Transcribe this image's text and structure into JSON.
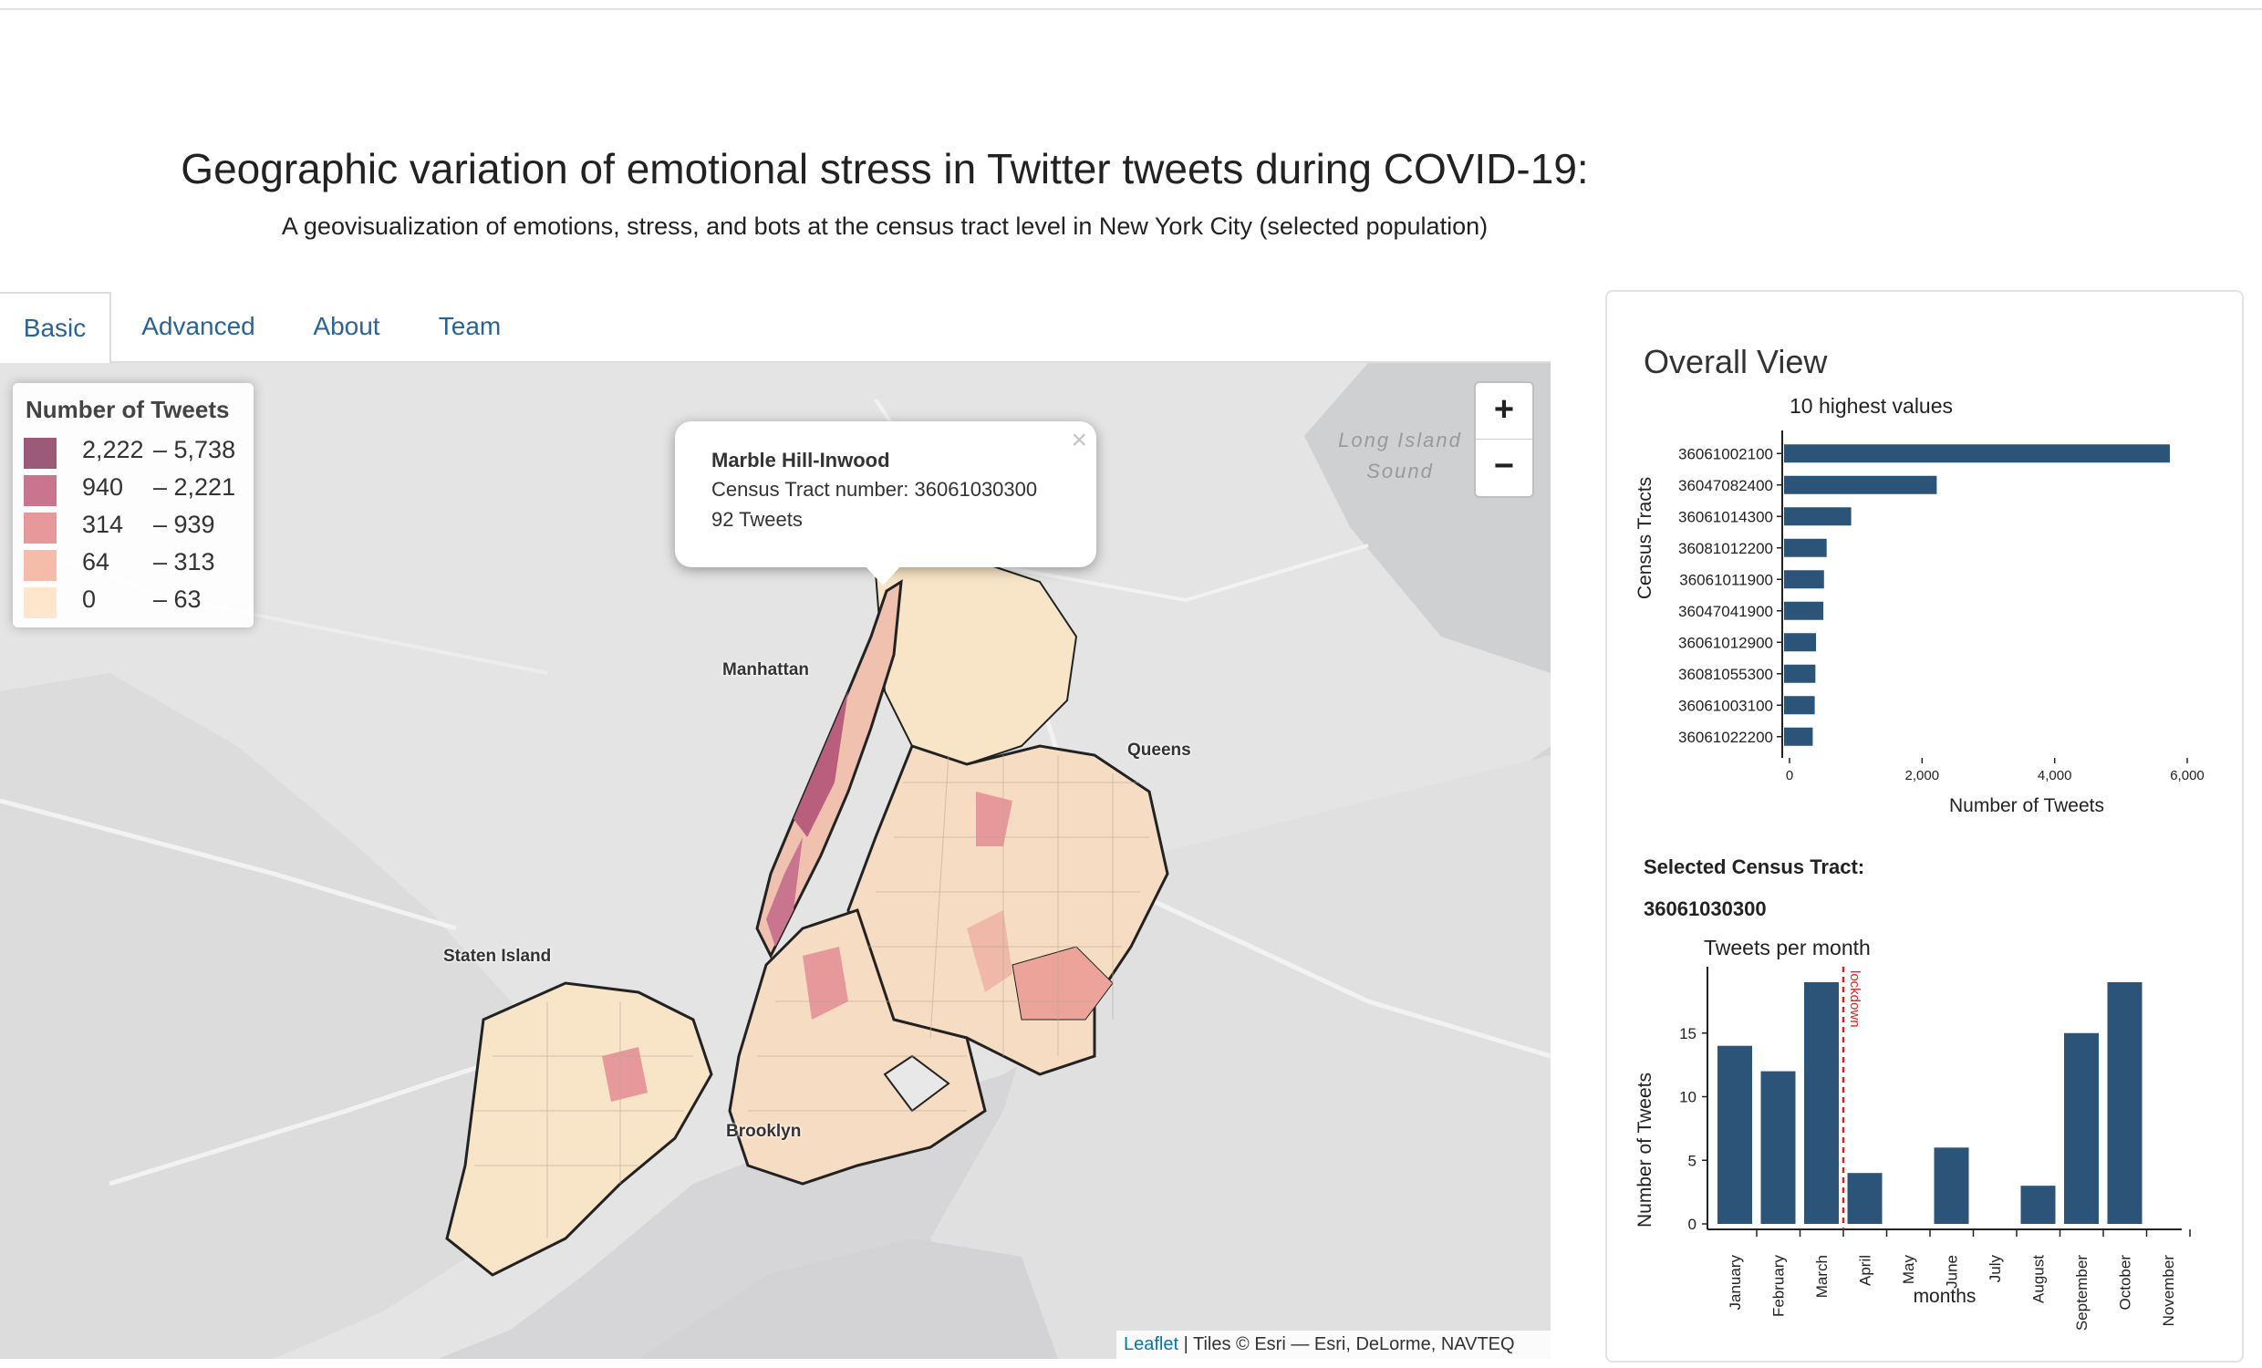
{
  "header": {
    "title": "Geographic variation of emotional stress in Twitter tweets during COVID-19:",
    "subtitle": "A geovisualization of emotions, stress, and bots at the census tract level in New York City (selected population)"
  },
  "tabs": [
    {
      "label": "Basic",
      "active": true
    },
    {
      "label": "Advanced",
      "active": false
    },
    {
      "label": "About",
      "active": false
    },
    {
      "label": "Team",
      "active": false
    }
  ],
  "map": {
    "legend": {
      "title": "Number of Tweets",
      "rows": [
        {
          "lo": "2,222",
          "hi": "– 5,738",
          "color": "#9a5a78"
        },
        {
          "lo": "940",
          "hi": "– 2,221",
          "color": "#c97590"
        },
        {
          "lo": "314",
          "hi": "– 939",
          "color": "#e6989a"
        },
        {
          "lo": "64",
          "hi": "– 313",
          "color": "#f5bcaa"
        },
        {
          "lo": "0",
          "hi": "– 63",
          "color": "#fde6cc"
        }
      ]
    },
    "popup": {
      "name": "Marble Hill-Inwood",
      "tract_line": "Census Tract number: 36061030300",
      "tweets_line": "92 Tweets",
      "close_symbol": "×"
    },
    "zoom_in": "+",
    "zoom_out": "−",
    "labels": {
      "manhattan": "Manhattan",
      "queens": "Queens",
      "staten_island": "Staten Island",
      "brooklyn": "Brooklyn",
      "long_island": "Long Island",
      "sound": "Sound"
    },
    "attribution": {
      "leaflet": "Leaflet",
      "rest": " | Tiles © Esri — Esri, DeLorme, NAVTEQ"
    }
  },
  "panel": {
    "title": "Overall View",
    "selected_label": "Selected Census Tract:",
    "selected_value": "36061030300"
  },
  "chart_data": [
    {
      "type": "bar",
      "orientation": "horizontal",
      "title": "10 highest values",
      "xlabel": "Number of Tweets",
      "ylabel": "Census Tracts",
      "xlim": [
        0,
        6000
      ],
      "xticks": [
        "0",
        "2,000",
        "4,000",
        "6,000"
      ],
      "tick_values": [
        0,
        2000,
        4000,
        6000
      ],
      "categories": [
        "36061002100",
        "36047082400",
        "36061014300",
        "36081012200",
        "36061011900",
        "36047041900",
        "36061012900",
        "36081055300",
        "36061003100",
        "36061022200"
      ],
      "values": [
        5738,
        2221,
        930,
        560,
        520,
        510,
        400,
        390,
        380,
        350
      ],
      "color": "#2c5478"
    },
    {
      "type": "bar",
      "title": "Tweets per month",
      "xlabel": "months",
      "ylabel": "Number of Tweets",
      "ylim": [
        0,
        19.5
      ],
      "yticks": [
        "0",
        "5",
        "10",
        "15"
      ],
      "tick_values": [
        0,
        5,
        10,
        15
      ],
      "categories": [
        "January",
        "February",
        "March",
        "April",
        "May",
        "June",
        "July",
        "August",
        "September",
        "October",
        "November"
      ],
      "values": [
        14,
        12,
        19,
        4,
        0,
        6,
        0,
        3,
        15,
        19,
        0
      ],
      "annotation": {
        "label": "lockdown",
        "x": "March",
        "color": "#e0201b"
      },
      "color": "#2c5478"
    }
  ]
}
